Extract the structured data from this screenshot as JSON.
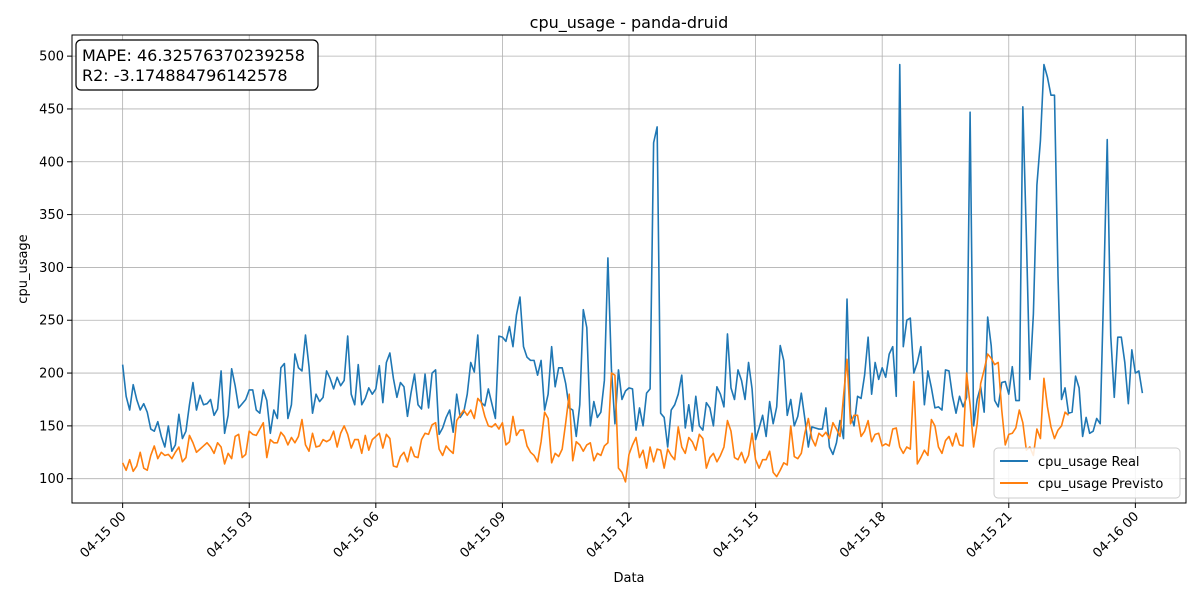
{
  "chart_data": {
    "type": "line",
    "title": "cpu_usage - panda-druid",
    "xlabel": "Data",
    "ylabel": "cpu_usage",
    "x_ticks": [
      "04-15 00",
      "04-15 03",
      "04-15 06",
      "04-15 09",
      "04-15 12",
      "04-15 15",
      "04-15 18",
      "04-15 21",
      "04-16 00"
    ],
    "y_ticks": [
      100,
      150,
      200,
      250,
      300,
      350,
      400,
      450,
      500
    ],
    "xlim_hours": [
      -1.2,
      25.2
    ],
    "ylim": [
      77,
      520
    ],
    "grid": true,
    "legend_position": "lower-right",
    "metrics": {
      "mape": "MAPE: 46.32576370239258",
      "r2": "R2: -3.174884796142578"
    },
    "x_start": "04-15 00:00",
    "x_step_minutes": 5,
    "series": [
      {
        "name": "cpu_usage Real",
        "color": "#1f77b4",
        "values": [
          208,
          178,
          165,
          189,
          175,
          165,
          171,
          163,
          147,
          145,
          154,
          140,
          130,
          150,
          126,
          132,
          161,
          138,
          145,
          170,
          191,
          165,
          179,
          170,
          171,
          175,
          160,
          166,
          202,
          143,
          160,
          204,
          188,
          167,
          171,
          175,
          184,
          184,
          165,
          162,
          184,
          174,
          143,
          165,
          157,
          205,
          209,
          157,
          170,
          218,
          205,
          202,
          236,
          206,
          162,
          180,
          173,
          177,
          202,
          195,
          185,
          196,
          188,
          193,
          235,
          180,
          170,
          208,
          170,
          176,
          186,
          180,
          185,
          207,
          172,
          210,
          219,
          195,
          177,
          191,
          187,
          159,
          181,
          199,
          170,
          166,
          199,
          167,
          200,
          203,
          142,
          148,
          158,
          165,
          144,
          180,
          158,
          163,
          180,
          210,
          201,
          236,
          172,
          169,
          185,
          171,
          157,
          235,
          234,
          230,
          244,
          225,
          255,
          272,
          225,
          215,
          212,
          212,
          198,
          212,
          165,
          180,
          225,
          187,
          205,
          205,
          190,
          167,
          165,
          140,
          170,
          260,
          243,
          150,
          173,
          158,
          163,
          193,
          309,
          204,
          152,
          203,
          175,
          183,
          186,
          185,
          146,
          167,
          150,
          181,
          185,
          418,
          433,
          162,
          158,
          130,
          165,
          170,
          180,
          198,
          148,
          170,
          145,
          178,
          150,
          146,
          172,
          167,
          150,
          187,
          180,
          168,
          237,
          186,
          175,
          203,
          193,
          175,
          210,
          185,
          137,
          148,
          160,
          140,
          173,
          152,
          168,
          226,
          212,
          160,
          175,
          150,
          159,
          181,
          157,
          130,
          149,
          148,
          147,
          147,
          167,
          130,
          123,
          134,
          155,
          138,
          270,
          161,
          150,
          178,
          176,
          198,
          234,
          180,
          210,
          194,
          205,
          196,
          218,
          225,
          178,
          492,
          225,
          250,
          252,
          200,
          210,
          225,
          170,
          202,
          186,
          167,
          168,
          165,
          203,
          202,
          178,
          162,
          178,
          168,
          177,
          447,
          150,
          175,
          187,
          163,
          253,
          226,
          174,
          168,
          191,
          192,
          180,
          206,
          174,
          174,
          452,
          330,
          194,
          256,
          378,
          420,
          492,
          480,
          463,
          463,
          292,
          175,
          186,
          162,
          163,
          197,
          186,
          140,
          158,
          143,
          145,
          157,
          152,
          280,
          421,
          235,
          177,
          234,
          234,
          210,
          171,
          222,
          200,
          202,
          181
        ],
        "approx": true
      },
      {
        "name": "cpu_usage Previsto",
        "color": "#ff7f0e",
        "values": [
          115,
          108,
          118,
          107,
          112,
          125,
          110,
          108,
          122,
          131,
          119,
          125,
          122,
          123,
          119,
          125,
          130,
          116,
          120,
          141,
          134,
          125,
          128,
          131,
          134,
          130,
          124,
          134,
          130,
          114,
          124,
          119,
          140,
          142,
          120,
          123,
          145,
          142,
          141,
          147,
          153,
          120,
          137,
          134,
          134,
          144,
          140,
          132,
          139,
          134,
          140,
          156,
          132,
          126,
          143,
          130,
          131,
          137,
          135,
          137,
          145,
          130,
          143,
          150,
          142,
          129,
          137,
          137,
          124,
          141,
          127,
          137,
          140,
          143,
          129,
          142,
          138,
          112,
          111,
          121,
          125,
          116,
          130,
          121,
          120,
          137,
          143,
          142,
          151,
          153,
          128,
          122,
          131,
          127,
          124,
          155,
          160,
          165,
          160,
          165,
          157,
          176,
          172,
          159,
          150,
          149,
          152,
          147,
          153,
          132,
          135,
          159,
          141,
          146,
          146,
          131,
          125,
          122,
          116,
          135,
          163,
          157,
          115,
          124,
          121,
          128,
          153,
          180,
          117,
          135,
          132,
          126,
          132,
          134,
          117,
          124,
          122,
          131,
          134,
          200,
          198,
          110,
          106,
          97,
          123,
          132,
          139,
          120,
          127,
          110,
          130,
          116,
          128,
          127,
          110,
          128,
          122,
          118,
          149,
          130,
          124,
          139,
          135,
          127,
          142,
          138,
          110,
          120,
          124,
          116,
          122,
          130,
          155,
          145,
          120,
          118,
          125,
          115,
          122,
          143,
          118,
          110,
          118,
          118,
          126,
          106,
          102,
          108,
          115,
          113,
          150,
          121,
          119,
          124,
          143,
          157,
          138,
          131,
          143,
          140,
          144,
          138,
          153,
          147,
          140,
          178,
          213,
          152,
          160,
          160,
          140,
          145,
          155,
          135,
          142,
          143,
          131,
          133,
          131,
          147,
          148,
          130,
          124,
          130,
          128,
          192,
          114,
          120,
          127,
          122,
          156,
          150,
          130,
          124,
          136,
          140,
          131,
          143,
          132,
          131,
          200,
          170,
          130,
          152,
          190,
          203,
          218,
          214,
          208,
          210,
          165,
          132,
          142,
          143,
          148,
          165,
          153,
          127,
          130,
          122,
          147,
          138,
          195,
          168,
          149,
          138,
          146,
          150,
          163,
          160
        ]
      }
    ]
  }
}
